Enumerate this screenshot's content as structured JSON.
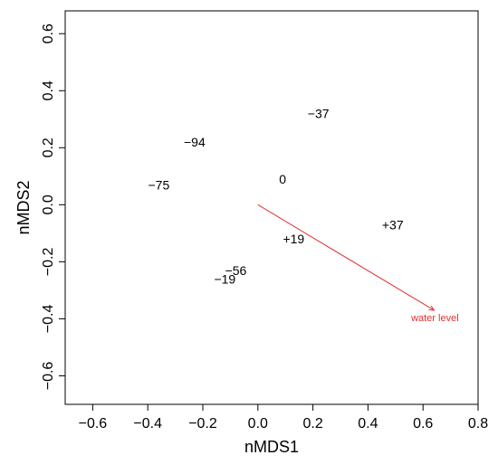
{
  "chart_data": {
    "type": "scatter",
    "xlabel": "nMDS1",
    "ylabel": "nMDS2",
    "xlim": [
      -0.7,
      0.8
    ],
    "ylim": [
      -0.7,
      0.68
    ],
    "x_ticks": [
      -0.6,
      -0.4,
      -0.2,
      0.0,
      0.2,
      0.4,
      0.6,
      0.8
    ],
    "x_tick_labels": [
      "−0.6",
      "−0.4",
      "−0.2",
      "0.0",
      "0.2",
      "0.4",
      "0.6",
      "0.8"
    ],
    "y_ticks": [
      -0.6,
      -0.4,
      -0.2,
      0.0,
      0.2,
      0.4,
      0.6
    ],
    "y_tick_labels": [
      "−0.6",
      "−0.4",
      "−0.2",
      "0.0",
      "0.2",
      "0.4",
      "0.6"
    ],
    "grid": false,
    "points": [
      {
        "label": "−37",
        "x": 0.22,
        "y": 0.32
      },
      {
        "label": "−94",
        "x": -0.23,
        "y": 0.22
      },
      {
        "label": "−75",
        "x": -0.36,
        "y": 0.07
      },
      {
        "label": "0",
        "x": 0.09,
        "y": 0.09
      },
      {
        "label": "+37",
        "x": 0.49,
        "y": -0.07
      },
      {
        "label": "+19",
        "x": 0.13,
        "y": -0.12
      },
      {
        "label": "−56",
        "x": -0.08,
        "y": -0.23
      },
      {
        "label": "−19",
        "x": -0.12,
        "y": -0.26
      }
    ],
    "vector": {
      "label": "water level",
      "x0": 0.0,
      "y0": 0.0,
      "x1": 0.64,
      "y1": -0.37,
      "color": "#e0312f"
    }
  }
}
